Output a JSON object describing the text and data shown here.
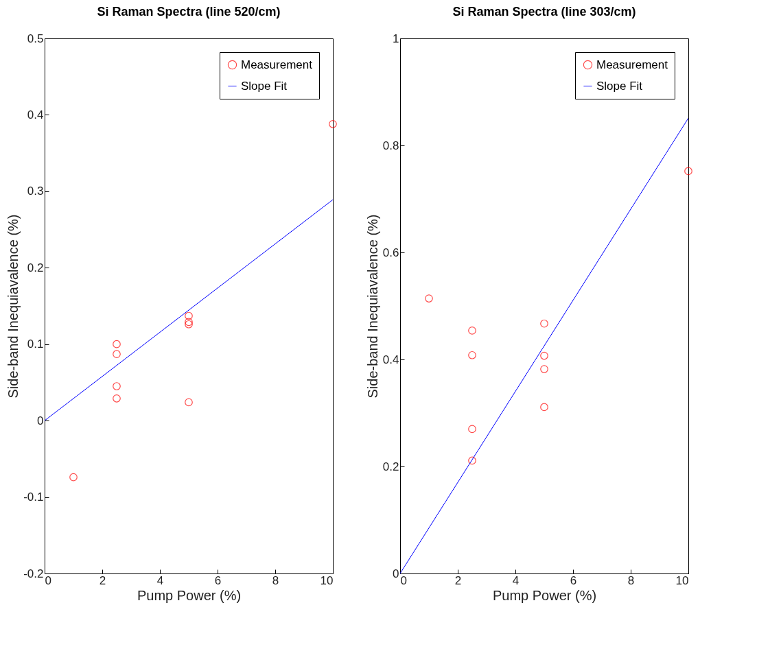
{
  "chart_data": [
    {
      "type": "scatter",
      "title": "Si Raman Spectra (line 520/cm)",
      "xlabel": "Pump Power (%)",
      "ylabel": "Side-band Inequiavalence (%)",
      "xlim": [
        0,
        10
      ],
      "xticks": [
        0,
        2,
        4,
        6,
        8,
        10
      ],
      "ylim": [
        -0.2,
        0.5
      ],
      "yticks": [
        -0.2,
        -0.1,
        0,
        0.1,
        0.2,
        0.3,
        0.4,
        0.5
      ],
      "legend": "top right",
      "series": [
        {
          "name": "Measurement",
          "marker": "circle",
          "color": "#ff0000",
          "x": [
            1,
            2.5,
            2.5,
            2.5,
            2.5,
            5,
            5,
            5,
            5,
            10
          ],
          "values": [
            -0.074,
            0.1,
            0.087,
            0.045,
            0.029,
            0.137,
            0.129,
            0.126,
            0.024,
            0.388
          ]
        },
        {
          "name": "Slope Fit",
          "type": "line",
          "color": "#0000ff",
          "x": [
            0,
            10
          ],
          "marker": "none",
          "values": [
            0,
            0.289
          ]
        }
      ]
    },
    {
      "type": "scatter",
      "title": "Si Raman Spectra (line 303/cm)",
      "xlabel": "Pump Power (%)",
      "ylabel": "Side-band Inequiavalence (%)",
      "xlim": [
        0,
        10
      ],
      "xticks": [
        0,
        2,
        4,
        6,
        8,
        10
      ],
      "ylim": [
        0,
        1
      ],
      "yticks": [
        0,
        0.2,
        0.4,
        0.6,
        0.8,
        1
      ],
      "legend": "top right",
      "series": [
        {
          "name": "Measurement",
          "marker": "circle",
          "color": "#ff0000",
          "x": [
            1,
            2.5,
            2.5,
            2.5,
            2.5,
            5,
            5,
            5,
            5,
            10
          ],
          "values": [
            0.514,
            0.454,
            0.408,
            0.27,
            0.211,
            0.467,
            0.407,
            0.382,
            0.311,
            0.752
          ]
        },
        {
          "name": "Slope Fit",
          "type": "line",
          "color": "#0000ff",
          "x": [
            0,
            10
          ],
          "marker": "none",
          "values": [
            0,
            0.851
          ]
        }
      ]
    }
  ]
}
